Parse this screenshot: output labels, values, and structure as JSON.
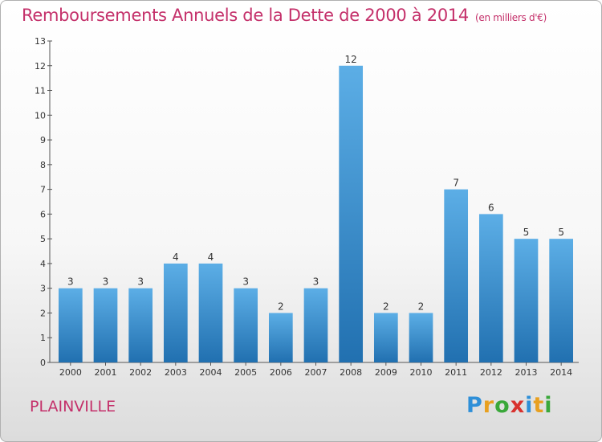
{
  "header": {
    "title": "Remboursements Annuels de la Dette de 2000 à 2014",
    "unit": "(en milliers d'€)"
  },
  "footer": {
    "place": "PLAINVILLE",
    "logo_letters": [
      "P",
      "r",
      "o",
      "x",
      "i",
      "t",
      "i"
    ],
    "logo_colors": [
      "#2e8fd8",
      "#e8a020",
      "#3aa83a",
      "#d8322e",
      "#2e8fd8",
      "#e8a020",
      "#3aa83a"
    ]
  },
  "colors": {
    "bar_light": "#5caee6",
    "bar_dark": "#2170b0",
    "accent": "#c4306a"
  },
  "chart_data": {
    "type": "bar",
    "title": "Remboursements Annuels de la Dette de 2000 à 2014",
    "xlabel": "",
    "ylabel": "",
    "categories": [
      "2000",
      "2001",
      "2002",
      "2003",
      "2004",
      "2005",
      "2006",
      "2007",
      "2008",
      "2009",
      "2010",
      "2011",
      "2012",
      "2013",
      "2014"
    ],
    "values": [
      3,
      3,
      3,
      4,
      4,
      3,
      2,
      3,
      12,
      2,
      2,
      7,
      6,
      5,
      5
    ],
    "ylim": [
      0,
      13
    ],
    "yticks": [
      0,
      1,
      2,
      3,
      4,
      5,
      6,
      7,
      8,
      9,
      10,
      11,
      12,
      13
    ],
    "grid": false,
    "legend": "none"
  }
}
